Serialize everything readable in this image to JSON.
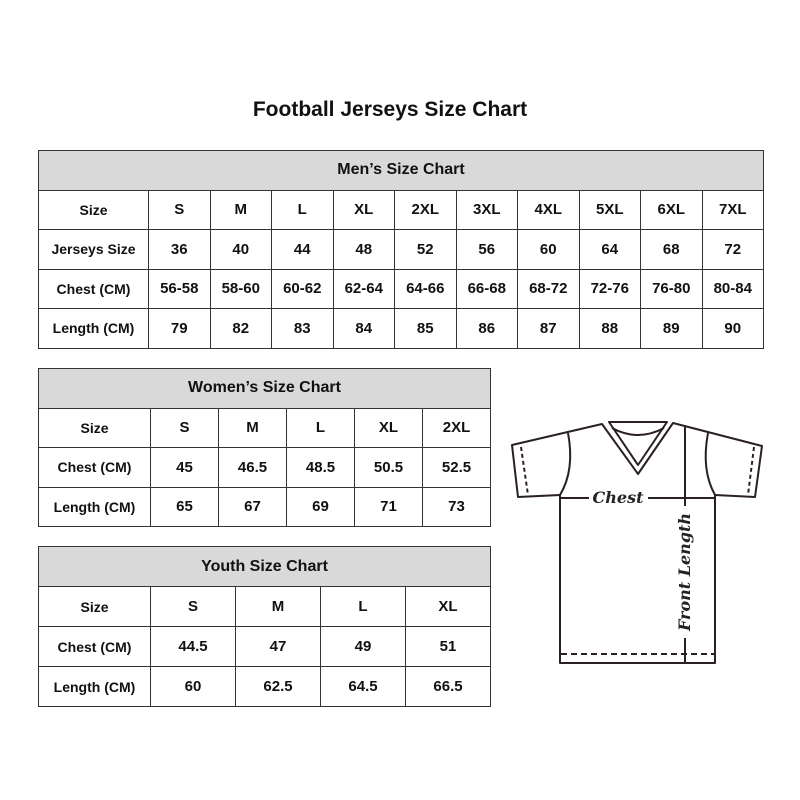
{
  "title": "Football Jerseys Size Chart",
  "men": {
    "caption": "Men’s Size Chart",
    "rows": [
      [
        "Size",
        "S",
        "M",
        "L",
        "XL",
        "2XL",
        "3XL",
        "4XL",
        "5XL",
        "6XL",
        "7XL"
      ],
      [
        "Jerseys Size",
        "36",
        "40",
        "44",
        "48",
        "52",
        "56",
        "60",
        "64",
        "68",
        "72"
      ],
      [
        "Chest (CM)",
        "56-58",
        "58-60",
        "60-62",
        "62-64",
        "64-66",
        "66-68",
        "68-72",
        "72-76",
        "76-80",
        "80-84"
      ],
      [
        "Length (CM)",
        "79",
        "82",
        "83",
        "84",
        "85",
        "86",
        "87",
        "88",
        "89",
        "90"
      ]
    ]
  },
  "women": {
    "caption": "Women’s Size Chart",
    "rows": [
      [
        "Size",
        "S",
        "M",
        "L",
        "XL",
        "2XL"
      ],
      [
        "Chest (CM)",
        "45",
        "46.5",
        "48.5",
        "50.5",
        "52.5"
      ],
      [
        "Length (CM)",
        "65",
        "67",
        "69",
        "71",
        "73"
      ]
    ]
  },
  "youth": {
    "caption": "Youth Size Chart",
    "rows": [
      [
        "Size",
        "S",
        "M",
        "L",
        "XL"
      ],
      [
        "Chest (CM)",
        "44.5",
        "47",
        "49",
        "51"
      ],
      [
        "Length (CM)",
        "60",
        "62.5",
        "64.5",
        "66.5"
      ]
    ]
  },
  "diagram": {
    "chest_label": "Chest",
    "length_label": "Front Length"
  },
  "colors": {
    "header_fill": "#d9d9d9",
    "border": "#333333"
  }
}
